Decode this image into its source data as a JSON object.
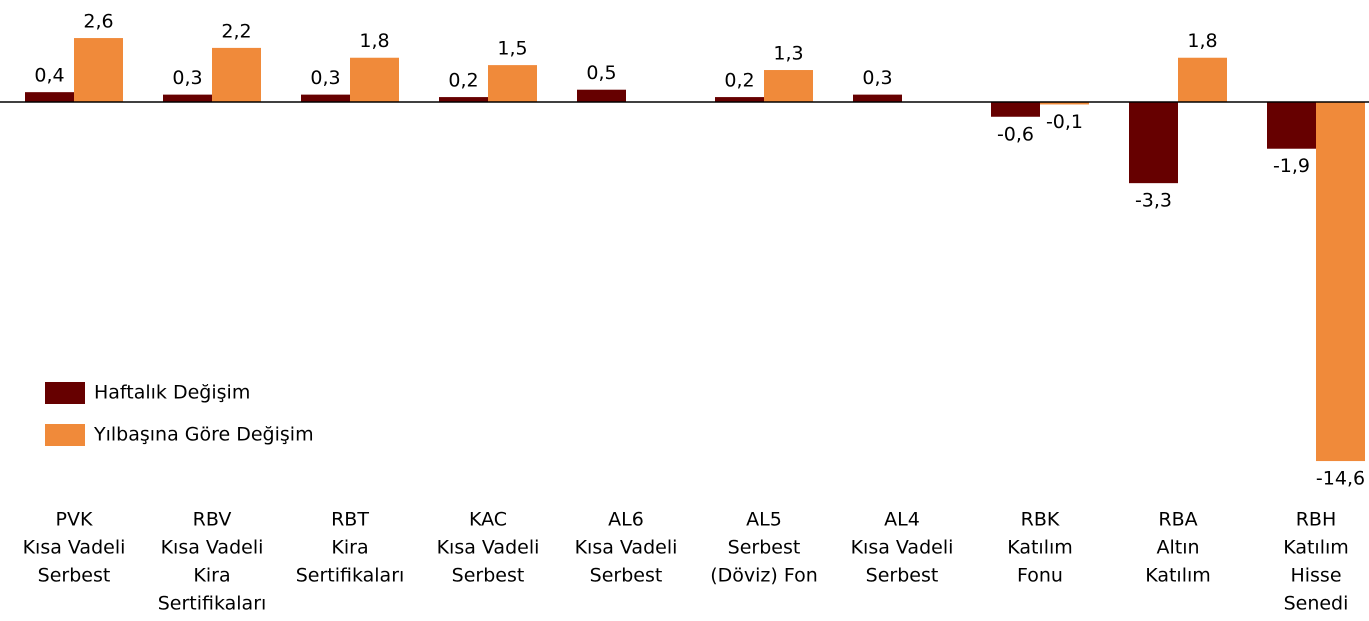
{
  "chart_data": {
    "type": "bar",
    "categories": [
      [
        "PVK",
        "Kısa Vadeli",
        "Serbest"
      ],
      [
        "RBV",
        "Kısa Vadeli",
        "Kira",
        "Sertifikaları"
      ],
      [
        "RBT",
        "Kira",
        "Sertifikaları"
      ],
      [
        "KAC",
        "Kısa Vadeli",
        "Serbest"
      ],
      [
        "AL6",
        "Kısa Vadeli",
        "Serbest"
      ],
      [
        "AL5",
        "Serbest",
        "(Döviz) Fon"
      ],
      [
        "AL4",
        "Kısa Vadeli",
        "Serbest"
      ],
      [
        "RBK",
        "Katılım",
        "Fonu"
      ],
      [
        "RBA",
        "Altın",
        "Katılım"
      ],
      [
        "RBH",
        "Katılım",
        "Hisse",
        "Senedi"
      ]
    ],
    "series": [
      {
        "name": "Haftalık Değişim",
        "color": "#660000",
        "values": [
          0.4,
          0.3,
          0.3,
          0.2,
          0.5,
          0.2,
          0.3,
          -0.6,
          -3.3,
          -1.9
        ],
        "value_labels": [
          "0,4",
          "0,3",
          "0,3",
          "0,2",
          "0,5",
          "0,2",
          "0,3",
          "-0,6",
          "-3,3",
          "-1,9"
        ]
      },
      {
        "name": "Yılbaşına Göre Değişim",
        "color": "#f08a3a",
        "values": [
          2.6,
          2.2,
          1.8,
          1.5,
          null,
          1.3,
          null,
          -0.1,
          1.8,
          -14.6
        ],
        "value_labels": [
          "2,6",
          "2,2",
          "1,8",
          "1,5",
          null,
          "1,3",
          null,
          "-0,1",
          "1,8",
          "-14,6"
        ]
      }
    ],
    "legend": "lower-left"
  }
}
